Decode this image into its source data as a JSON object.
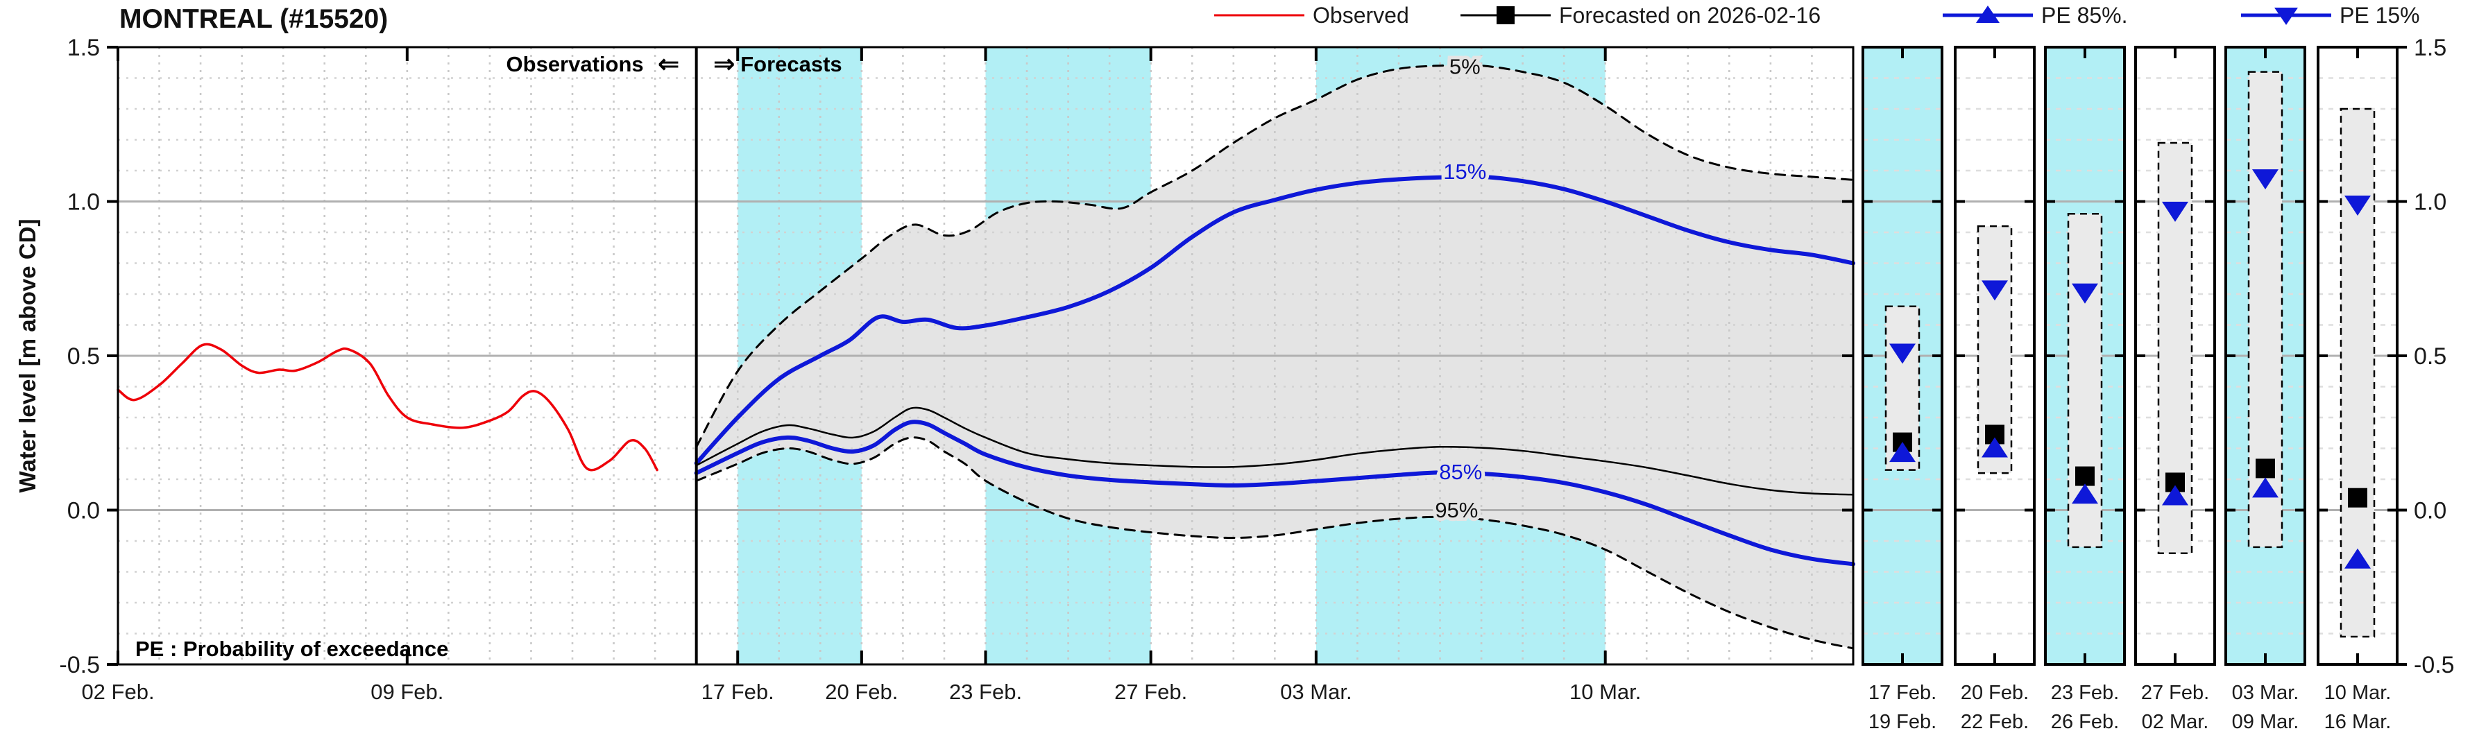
{
  "title": "MONTREAL (#15520)",
  "annotations": {
    "observations": "Observations",
    "forecasts": "Forecasts",
    "separator_left_arrow": "⇐",
    "separator_right_arrow": "⇒",
    "pe_note": "PE : Probability of exceedance"
  },
  "legend": {
    "items": [
      {
        "id": "observed",
        "label": "Observed",
        "marker": "line",
        "color_key": "red"
      },
      {
        "id": "forecast",
        "label": "Forecasted on 2026-02-16",
        "marker": "square",
        "color_key": "black"
      },
      {
        "id": "pe85",
        "label": "PE 85%.",
        "marker": "triangle-up",
        "color_key": "blue"
      },
      {
        "id": "pe15",
        "label": "PE 15%",
        "marker": "triangle-down",
        "color_key": "blue"
      }
    ]
  },
  "colors": {
    "red": "#ee0009",
    "blue": "#0e18d8",
    "black": "#000000",
    "cyan_band": "#b2eff5",
    "gray_band": "#e4e4e4",
    "box_fill": "#eaeaea",
    "grid_major": "#b0b0b0",
    "grid_minor": "#d2d2d2",
    "text": "#1a1a1a"
  },
  "y_axis": {
    "title": "Water level [m above CD]",
    "range": [
      -0.5,
      1.5
    ],
    "major_ticks": [
      {
        "label": "1.5",
        "value": 1.5
      },
      {
        "label": "1.0",
        "value": 1.0
      },
      {
        "label": "0.5",
        "value": 0.5
      },
      {
        "label": "0.0",
        "value": 0.0
      },
      {
        "label": "-0.5",
        "value": -0.5
      }
    ],
    "minor_step": 0.1
  },
  "x_axis": {
    "unit": "days since 02 Feb",
    "domain_days": [
      0,
      42
    ],
    "separator_day": 14,
    "ticks": [
      {
        "label": "02 Feb.",
        "day": 0
      },
      {
        "label": "09 Feb.",
        "day": 7
      },
      {
        "label": "17 Feb.",
        "day": 15
      },
      {
        "label": "20 Feb.",
        "day": 18
      },
      {
        "label": "23 Feb.",
        "day": 21
      },
      {
        "label": "27 Feb.",
        "day": 25
      },
      {
        "label": "03 Mar.",
        "day": 29
      },
      {
        "label": "10 Mar.",
        "day": 36
      }
    ],
    "highlight_bands_days": [
      [
        15,
        18
      ],
      [
        21,
        25
      ],
      [
        29,
        36
      ]
    ]
  },
  "chart_data": {
    "type": "line",
    "title": "MONTREAL (#15520)",
    "ylabel": "Water level [m above CD]",
    "ylim": [
      -0.5,
      1.5
    ],
    "x_unit": "days since 02 Feb 2026",
    "grid": true,
    "legend_position": "top-right",
    "series": [
      {
        "name": "Observed",
        "style": "solid",
        "width": 3.5,
        "color_key": "red",
        "points": [
          [
            0,
            0.39
          ],
          [
            0.4,
            0.357
          ],
          [
            1,
            0.405
          ],
          [
            1.55,
            0.475
          ],
          [
            2.05,
            0.535
          ],
          [
            2.5,
            0.52
          ],
          [
            3,
            0.468
          ],
          [
            3.4,
            0.445
          ],
          [
            3.9,
            0.455
          ],
          [
            4.3,
            0.452
          ],
          [
            4.85,
            0.48
          ],
          [
            5.3,
            0.515
          ],
          [
            5.6,
            0.52
          ],
          [
            6.1,
            0.475
          ],
          [
            6.55,
            0.37
          ],
          [
            7,
            0.3
          ],
          [
            7.6,
            0.278
          ],
          [
            8.35,
            0.267
          ],
          [
            9,
            0.29
          ],
          [
            9.45,
            0.32
          ],
          [
            9.8,
            0.37
          ],
          [
            10.1,
            0.385
          ],
          [
            10.45,
            0.35
          ],
          [
            10.9,
            0.26
          ],
          [
            11.35,
            0.135
          ],
          [
            11.9,
            0.16
          ],
          [
            12.4,
            0.225
          ],
          [
            12.75,
            0.2
          ],
          [
            13.05,
            0.13
          ]
        ]
      },
      {
        "name": "PE 5%",
        "style": "dashed",
        "width": 3,
        "color_key": "black",
        "inline_label": "5%",
        "inline_label_pos": [
          32.6,
          1.432
        ],
        "points": [
          [
            14,
            0.205
          ],
          [
            15,
            0.45
          ],
          [
            16,
            0.6
          ],
          [
            17,
            0.71
          ],
          [
            18,
            0.815
          ],
          [
            18.7,
            0.89
          ],
          [
            19.3,
            0.925
          ],
          [
            20,
            0.89
          ],
          [
            20.6,
            0.905
          ],
          [
            21.3,
            0.965
          ],
          [
            22,
            0.995
          ],
          [
            22.7,
            1.0
          ],
          [
            23.5,
            0.99
          ],
          [
            24.3,
            0.978
          ],
          [
            25,
            1.03
          ],
          [
            26,
            1.1
          ],
          [
            27,
            1.19
          ],
          [
            28,
            1.27
          ],
          [
            29,
            1.33
          ],
          [
            30,
            1.395
          ],
          [
            31,
            1.43
          ],
          [
            32,
            1.44
          ],
          [
            33,
            1.44
          ],
          [
            34,
            1.42
          ],
          [
            35,
            1.385
          ],
          [
            36,
            1.31
          ],
          [
            37,
            1.22
          ],
          [
            38,
            1.15
          ],
          [
            39,
            1.11
          ],
          [
            40,
            1.09
          ],
          [
            41,
            1.08
          ],
          [
            42,
            1.07
          ]
        ]
      },
      {
        "name": "PE 15%",
        "style": "solid",
        "width": 6,
        "color_key": "blue",
        "inline_label": "15%",
        "inline_label_pos": [
          32.6,
          1.091
        ],
        "points": [
          [
            14,
            0.152
          ],
          [
            15,
            0.3
          ],
          [
            16,
            0.425
          ],
          [
            17,
            0.5
          ],
          [
            17.7,
            0.55
          ],
          [
            18.4,
            0.625
          ],
          [
            19,
            0.61
          ],
          [
            19.6,
            0.617
          ],
          [
            20.3,
            0.59
          ],
          [
            21,
            0.598
          ],
          [
            22,
            0.625
          ],
          [
            23,
            0.658
          ],
          [
            24,
            0.71
          ],
          [
            25,
            0.785
          ],
          [
            26,
            0.885
          ],
          [
            27,
            0.965
          ],
          [
            28,
            1.005
          ],
          [
            29,
            1.038
          ],
          [
            30,
            1.06
          ],
          [
            31,
            1.072
          ],
          [
            32,
            1.078
          ],
          [
            33,
            1.08
          ],
          [
            34,
            1.066
          ],
          [
            35,
            1.04
          ],
          [
            36,
            1.0
          ],
          [
            37,
            0.953
          ],
          [
            38,
            0.906
          ],
          [
            39,
            0.868
          ],
          [
            40,
            0.843
          ],
          [
            41,
            0.827
          ],
          [
            42,
            0.8
          ]
        ]
      },
      {
        "name": "Forecasted on 2026-02-16",
        "style": "solid",
        "width": 2.5,
        "color_key": "black",
        "points": [
          [
            14,
            0.145
          ],
          [
            15,
            0.215
          ],
          [
            15.6,
            0.255
          ],
          [
            16.2,
            0.275
          ],
          [
            16.7,
            0.265
          ],
          [
            17.3,
            0.245
          ],
          [
            17.8,
            0.235
          ],
          [
            18.3,
            0.255
          ],
          [
            18.8,
            0.3
          ],
          [
            19.2,
            0.33
          ],
          [
            19.6,
            0.325
          ],
          [
            20,
            0.3
          ],
          [
            20.5,
            0.265
          ],
          [
            21,
            0.235
          ],
          [
            22,
            0.185
          ],
          [
            23,
            0.165
          ],
          [
            24,
            0.152
          ],
          [
            25,
            0.145
          ],
          [
            26,
            0.14
          ],
          [
            27,
            0.14
          ],
          [
            28,
            0.148
          ],
          [
            29,
            0.163
          ],
          [
            30,
            0.183
          ],
          [
            31,
            0.197
          ],
          [
            32,
            0.205
          ],
          [
            33,
            0.202
          ],
          [
            34,
            0.192
          ],
          [
            35,
            0.175
          ],
          [
            36,
            0.158
          ],
          [
            37,
            0.138
          ],
          [
            38,
            0.112
          ],
          [
            39,
            0.085
          ],
          [
            40,
            0.065
          ],
          [
            41,
            0.054
          ],
          [
            42,
            0.05
          ]
        ]
      },
      {
        "name": "PE 85%",
        "style": "solid",
        "width": 6,
        "color_key": "blue",
        "inline_label": "85%",
        "inline_label_pos": [
          32.5,
          0.118
        ],
        "points": [
          [
            14,
            0.12
          ],
          [
            15,
            0.185
          ],
          [
            15.6,
            0.22
          ],
          [
            16.2,
            0.235
          ],
          [
            16.7,
            0.225
          ],
          [
            17.3,
            0.2
          ],
          [
            17.8,
            0.19
          ],
          [
            18.3,
            0.21
          ],
          [
            18.8,
            0.26
          ],
          [
            19.2,
            0.285
          ],
          [
            19.6,
            0.278
          ],
          [
            20,
            0.25
          ],
          [
            20.5,
            0.215
          ],
          [
            21,
            0.18
          ],
          [
            22,
            0.138
          ],
          [
            23,
            0.112
          ],
          [
            24,
            0.098
          ],
          [
            25,
            0.09
          ],
          [
            26,
            0.084
          ],
          [
            27,
            0.08
          ],
          [
            28,
            0.085
          ],
          [
            29,
            0.094
          ],
          [
            30,
            0.104
          ],
          [
            31,
            0.114
          ],
          [
            32,
            0.122
          ],
          [
            33,
            0.118
          ],
          [
            34,
            0.107
          ],
          [
            35,
            0.088
          ],
          [
            36,
            0.058
          ],
          [
            37,
            0.018
          ],
          [
            38,
            -0.032
          ],
          [
            39,
            -0.082
          ],
          [
            40,
            -0.128
          ],
          [
            41,
            -0.158
          ],
          [
            42,
            -0.175
          ]
        ]
      },
      {
        "name": "PE 95%",
        "style": "dashed",
        "width": 3,
        "color_key": "black",
        "inline_label": "95%",
        "inline_label_pos": [
          32.4,
          -0.005
        ],
        "points": [
          [
            14,
            0.095
          ],
          [
            15,
            0.15
          ],
          [
            15.6,
            0.185
          ],
          [
            16.2,
            0.2
          ],
          [
            16.7,
            0.19
          ],
          [
            17.3,
            0.162
          ],
          [
            17.8,
            0.15
          ],
          [
            18.3,
            0.17
          ],
          [
            18.8,
            0.215
          ],
          [
            19.2,
            0.235
          ],
          [
            19.6,
            0.225
          ],
          [
            20,
            0.19
          ],
          [
            20.5,
            0.15
          ],
          [
            21,
            0.095
          ],
          [
            22,
            0.025
          ],
          [
            23,
            -0.027
          ],
          [
            24,
            -0.055
          ],
          [
            25,
            -0.072
          ],
          [
            26,
            -0.084
          ],
          [
            27,
            -0.09
          ],
          [
            28,
            -0.082
          ],
          [
            29,
            -0.062
          ],
          [
            30,
            -0.042
          ],
          [
            31,
            -0.028
          ],
          [
            32,
            -0.022
          ],
          [
            33,
            -0.03
          ],
          [
            34,
            -0.05
          ],
          [
            35,
            -0.08
          ],
          [
            36,
            -0.128
          ],
          [
            37,
            -0.198
          ],
          [
            38,
            -0.268
          ],
          [
            39,
            -0.33
          ],
          [
            40,
            -0.38
          ],
          [
            41,
            -0.42
          ],
          [
            42,
            -0.448
          ]
        ]
      }
    ],
    "uncertainty_band": {
      "upper": "PE 5%",
      "lower": "PE 95%"
    }
  },
  "forecast_panels": {
    "right_axis_tick_labels": [
      "1.5",
      "1.0",
      "0.5",
      "0.0",
      "-0.5"
    ],
    "panels": [
      {
        "start_label": "17 Feb.",
        "end_label": "19 Feb.",
        "highlighted": true,
        "range_5_95": [
          0.13,
          0.66
        ],
        "pe15": 0.51,
        "forecast": 0.22,
        "pe85": 0.185
      },
      {
        "start_label": "20 Feb.",
        "end_label": "22 Feb.",
        "highlighted": false,
        "range_5_95": [
          0.12,
          0.92
        ],
        "pe15": 0.715,
        "forecast": 0.245,
        "pe85": 0.2
      },
      {
        "start_label": "23 Feb.",
        "end_label": "26 Feb.",
        "highlighted": true,
        "range_5_95": [
          -0.12,
          0.96
        ],
        "pe15": 0.705,
        "forecast": 0.11,
        "pe85": 0.05
      },
      {
        "start_label": "27 Feb.",
        "end_label": "02 Mar.",
        "highlighted": false,
        "range_5_95": [
          -0.14,
          1.19
        ],
        "pe15": 0.97,
        "forecast": 0.09,
        "pe85": 0.045
      },
      {
        "start_label": "03 Mar.",
        "end_label": "09 Mar.",
        "highlighted": true,
        "range_5_95": [
          -0.12,
          1.42
        ],
        "pe15": 1.075,
        "forecast": 0.135,
        "pe85": 0.07
      },
      {
        "start_label": "10 Mar.",
        "end_label": "16 Mar.",
        "highlighted": false,
        "range_5_95": [
          -0.41,
          1.3
        ],
        "pe15": 0.99,
        "forecast": 0.04,
        "pe85": -0.16
      }
    ]
  }
}
